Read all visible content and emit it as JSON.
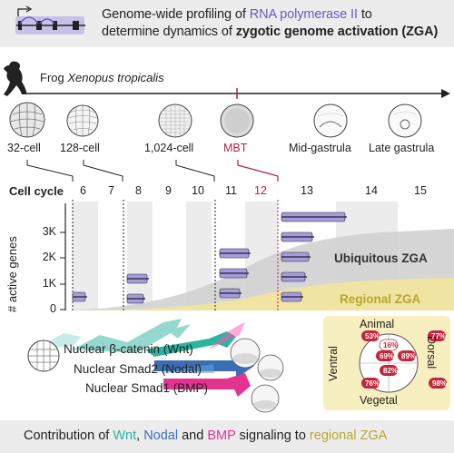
{
  "header": {
    "line1_prefix": "Genome-wide profiling of ",
    "line1_highlight": "RNA polymerase II",
    "line1_suffix": " to",
    "line2_prefix": "determine dynamics of ",
    "line2_bold": "zygotic genome activation (ZGA)"
  },
  "organism": {
    "prefix": "Frog ",
    "species": "Xenopus tropicalis"
  },
  "stages": [
    "32-cell",
    "128-cell",
    "1,024-cell",
    "MBT",
    "Mid-gastrula",
    "Late gastrula"
  ],
  "cell_cycle": {
    "label": "Cell cycle",
    "numbers": [
      "6",
      "7",
      "8",
      "9",
      "10",
      "11",
      "12",
      "13",
      "14",
      "15"
    ]
  },
  "axis": {
    "ylabel": "# active genes",
    "ticks": [
      "3K",
      "2K",
      "1K",
      "0"
    ]
  },
  "zga_labels": {
    "ubiquitous": "Ubiquitous ZGA",
    "regional": "Regional ZGA"
  },
  "signals": [
    "Nuclear β-catenin (Wnt)",
    "Nuclear Smad2 (Nodal)",
    "Nuclear Smad1 (BMP)"
  ],
  "embryo_map": {
    "animal": "Animal",
    "vegetal": "Vegetal",
    "ventral": "Ventral",
    "dorsal": "Dorsal",
    "outer": [
      "53%",
      "77%",
      "76%",
      "98%"
    ],
    "inner": [
      "16%",
      "69%",
      "89%",
      "82%"
    ]
  },
  "footer": {
    "prefix": "Contribution of ",
    "wnt": "Wnt",
    "sep1": ", ",
    "nodal": "Nodal",
    "sep2": " and ",
    "bmp": "BMP",
    "mid": " signaling to ",
    "regional": "regional ZGA"
  },
  "colors": {
    "polII": "#6a5bbf",
    "wnt": "#2ab5a0",
    "nodal": "#3b6fb3",
    "bmp": "#e2338f",
    "regional": "#b9a72a",
    "mbt": "#b0254a"
  }
}
